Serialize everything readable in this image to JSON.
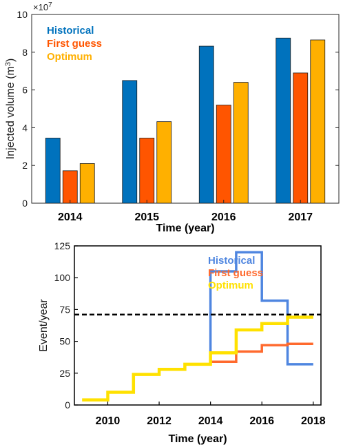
{
  "chart_data": [
    {
      "type": "bar",
      "categories": [
        "2014",
        "2015",
        "2016",
        "2017"
      ],
      "series": [
        {
          "name": "Historical",
          "values": [
            3.45,
            6.5,
            8.32,
            8.75
          ],
          "color": "#0072BD"
        },
        {
          "name": "First guess",
          "values": [
            1.72,
            3.45,
            5.2,
            6.9
          ],
          "color": "#FF5500"
        },
        {
          "name": "Optimum",
          "values": [
            2.1,
            4.32,
            6.4,
            8.65
          ],
          "color": "#FFB000"
        }
      ],
      "ylabel": "Injected volume (m",
      "ylabel_sup": "3",
      "ylabel_close": ")",
      "xlabel": "Time (year)",
      "ylim": [
        0,
        10
      ],
      "yticks": [
        "0",
        "2",
        "4",
        "6",
        "8",
        "10"
      ],
      "scale_base": "×10",
      "scale_exp": "7",
      "legend_position": "top-left",
      "grid": false
    },
    {
      "type": "line",
      "step": true,
      "series": [
        {
          "name": "Historical",
          "color": "#4F86E0",
          "x": [
            2014,
            2014,
            2015,
            2015,
            2016,
            2016,
            2017,
            2017,
            2018
          ],
          "y": [
            42,
            105,
            105,
            120,
            120,
            82,
            82,
            32,
            32
          ]
        },
        {
          "name": "First guess",
          "color": "#FF6A2E",
          "x": [
            2014,
            2015,
            2015,
            2016,
            2016,
            2017,
            2017,
            2018
          ],
          "y": [
            34,
            34,
            42,
            42,
            47,
            47,
            48,
            48
          ]
        },
        {
          "name": "Optimum",
          "color": "#FFE100",
          "x": [
            2009,
            2010,
            2010,
            2011,
            2011,
            2012,
            2012,
            2013,
            2013,
            2014,
            2014,
            2015,
            2015,
            2016,
            2016,
            2017,
            2017,
            2018
          ],
          "y": [
            4,
            4,
            10,
            10,
            24,
            24,
            28,
            28,
            32,
            32,
            41,
            41,
            59,
            59,
            64,
            64,
            69,
            69
          ]
        }
      ],
      "reference_line": {
        "y": 71,
        "style": "dashed",
        "color": "#000000"
      },
      "xlabel": "Time (year)",
      "ylabel": "Event/year",
      "xlim": [
        2008.7,
        2018.3
      ],
      "ylim": [
        0,
        125
      ],
      "xticks": [
        "2010",
        "2012",
        "2014",
        "2016",
        "2018"
      ],
      "yticks": [
        "0",
        "25",
        "50",
        "75",
        "100",
        "125"
      ],
      "legend_position": "top-right",
      "grid": false
    }
  ]
}
